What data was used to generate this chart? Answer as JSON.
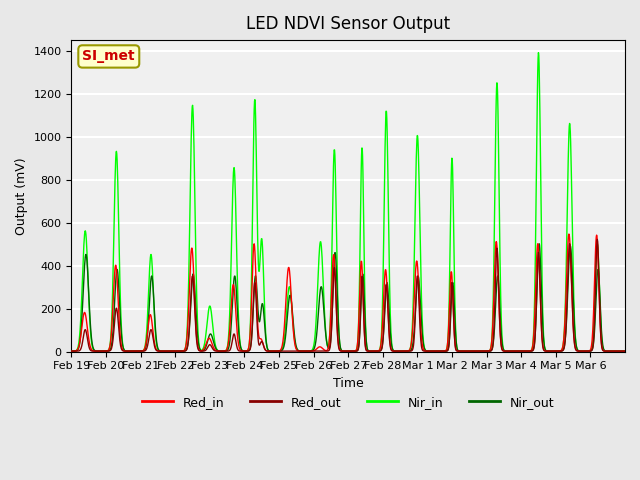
{
  "title": "LED NDVI Sensor Output",
  "xlabel": "Time",
  "ylabel": "Output (mV)",
  "ylim": [
    0,
    1450
  ],
  "yticks": [
    0,
    200,
    400,
    600,
    800,
    1000,
    1200,
    1400
  ],
  "annotation_text": "SI_met",
  "annotation_box_color": "#ffffcc",
  "annotation_box_edgecolor": "#999900",
  "annotation_text_color": "#cc0000",
  "bg_color": "#e8e8e8",
  "plot_bg_color": "#f0f0f0",
  "grid_color": "#ffffff",
  "colors": {
    "Red_in": "#ff0000",
    "Red_out": "#880000",
    "Nir_in": "#00ff00",
    "Nir_out": "#006600"
  },
  "date_labels": [
    "Feb 19",
    "Feb 20",
    "Feb 21",
    "Feb 22",
    "Feb 23",
    "Feb 24",
    "Feb 25",
    "Feb 26",
    "Feb 27",
    "Feb 28",
    "Mar 1",
    "Mar 2",
    "Mar 3",
    "Mar 4",
    "Mar 5",
    "Mar 6"
  ],
  "num_days": 16
}
